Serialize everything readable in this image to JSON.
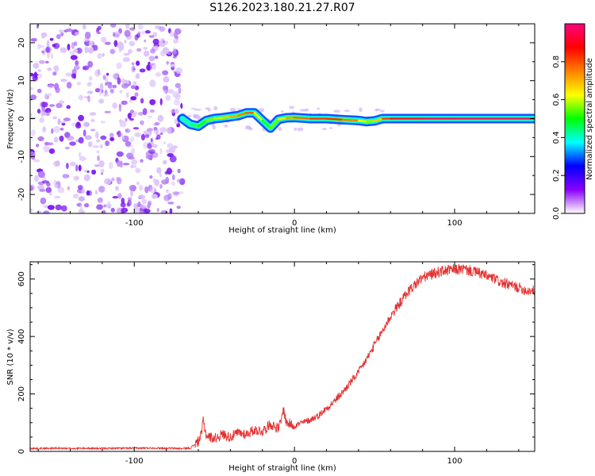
{
  "title": "S126.2023.180.21.27.R07",
  "colors": {
    "snr_line": "#e53030",
    "ridge_core": "#e53030",
    "colormap": [
      "#ffffff",
      "#8a00ff",
      "#0000ff",
      "#00ffff",
      "#00ff00",
      "#ffff00",
      "#ff8000",
      "#ff0000",
      "#ff0080"
    ]
  },
  "chart_data": [
    {
      "type": "heatmap",
      "xlabel": "Height of straight line (km)",
      "ylabel": "Frequency (Hz)",
      "xlim": [
        -165,
        150
      ],
      "ylim": [
        -25,
        25
      ],
      "x_ticks": [
        -100,
        0,
        100
      ],
      "x_tick_labels": [
        "-100",
        "0",
        "100"
      ],
      "y_ticks": [
        -20,
        -10,
        0,
        10,
        20
      ],
      "y_tick_labels": [
        "-20",
        "-10",
        "0",
        "10",
        "20"
      ],
      "colorbar": {
        "label": "Normalized spectral amplitude",
        "range": [
          0,
          1
        ],
        "ticks": [
          0.0,
          0.2,
          0.4,
          0.6,
          0.8
        ],
        "tick_labels": [
          "0.0",
          "0.2",
          "0.4",
          "0.6",
          "0.8"
        ]
      },
      "noise_region_x": [
        -165,
        -70
      ],
      "ridge": {
        "x": [
          -70,
          -65,
          -60,
          -55,
          -50,
          -45,
          -40,
          -35,
          -30,
          -25,
          -20,
          -15,
          -10,
          -5,
          0,
          10,
          20,
          30,
          40,
          45,
          50,
          55,
          60,
          80,
          100,
          120,
          150
        ],
        "y": [
          0,
          -1.5,
          -2,
          -0.5,
          0,
          0.2,
          0.5,
          0.8,
          1.5,
          1.5,
          -0.5,
          -2.5,
          -0.2,
          0.2,
          0.3,
          0,
          0,
          -0.3,
          -0.5,
          -0.8,
          -0.6,
          0,
          0,
          0,
          0,
          0,
          0
        ],
        "amplitude": [
          0.35,
          0.4,
          0.45,
          0.55,
          0.55,
          0.65,
          0.7,
          0.72,
          0.8,
          0.8,
          0.45,
          0.5,
          0.6,
          0.7,
          0.75,
          0.8,
          0.85,
          0.82,
          0.7,
          0.55,
          0.6,
          0.75,
          0.9,
          0.95,
          0.98,
          0.97,
          0.98
        ]
      }
    },
    {
      "type": "line",
      "xlabel": "Height of straight line (km)",
      "ylabel": "SNR (10 * v/v)",
      "xlim": [
        -165,
        150
      ],
      "ylim": [
        0,
        660
      ],
      "x_ticks": [
        -100,
        0,
        100
      ],
      "x_tick_labels": [
        "-100",
        "0",
        "100"
      ],
      "y_ticks": [
        0,
        200,
        400,
        600
      ],
      "y_tick_labels": [
        "0",
        "200",
        "400",
        "600"
      ],
      "series": [
        {
          "x": [
            -165,
            -150,
            -140,
            -130,
            -120,
            -110,
            -100,
            -90,
            -80,
            -70,
            -65,
            -60,
            -58,
            -57,
            -55,
            -50,
            -45,
            -40,
            -35,
            -30,
            -25,
            -20,
            -15,
            -10,
            -8,
            -7,
            -5,
            0,
            5,
            10,
            15,
            20,
            25,
            30,
            35,
            40,
            45,
            50,
            55,
            60,
            65,
            70,
            75,
            80,
            85,
            90,
            95,
            100,
            105,
            110,
            115,
            120,
            125,
            130,
            135,
            140,
            145,
            150
          ],
          "y": [
            10,
            11,
            10,
            11,
            10,
            11,
            11,
            12,
            11,
            10,
            12,
            35,
            60,
            110,
            55,
            45,
            60,
            50,
            65,
            60,
            75,
            70,
            95,
            80,
            110,
            150,
            100,
            90,
            100,
            110,
            125,
            150,
            175,
            205,
            240,
            275,
            320,
            370,
            420,
            470,
            510,
            550,
            580,
            605,
            615,
            625,
            630,
            632,
            635,
            628,
            622,
            610,
            600,
            585,
            578,
            570,
            560,
            560
          ]
        }
      ]
    }
  ]
}
